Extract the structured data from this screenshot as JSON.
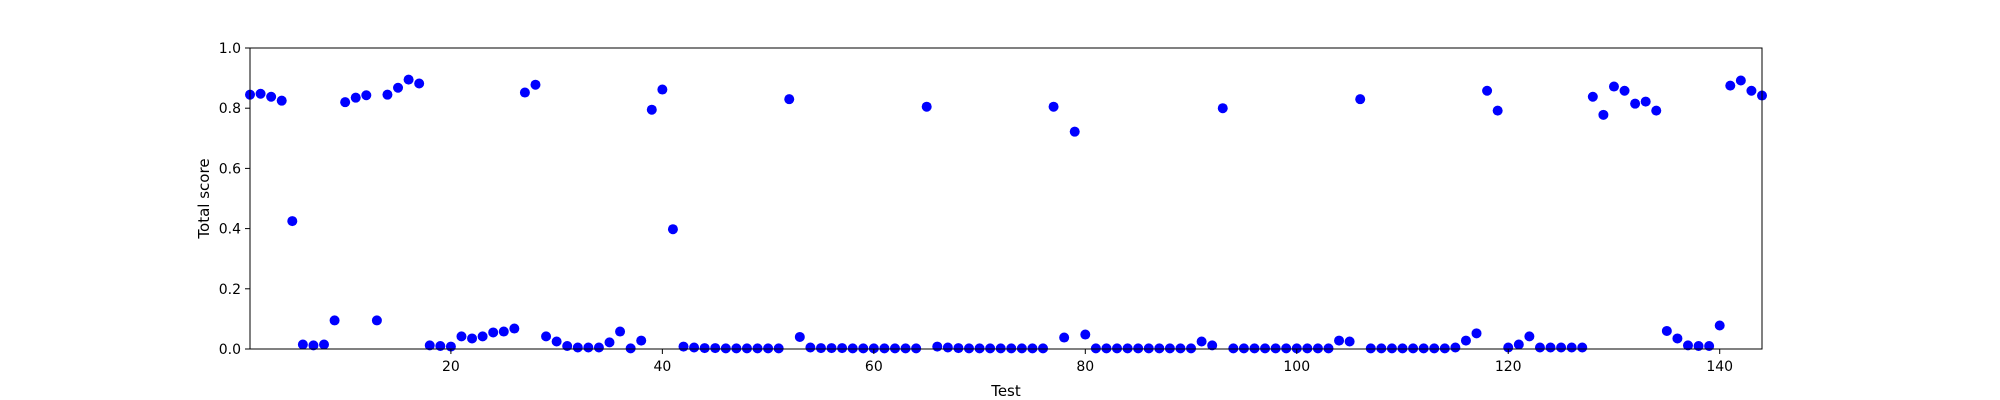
{
  "chart_data": {
    "type": "scatter",
    "title": "",
    "xlabel": "Test",
    "ylabel": "Total score",
    "xlim": [
      1,
      144
    ],
    "ylim": [
      0.0,
      1.0
    ],
    "grid": false,
    "x_ticks": [
      20,
      40,
      60,
      80,
      100,
      120,
      140
    ],
    "y_ticks": [
      "0.0",
      "0.2",
      "0.4",
      "0.6",
      "0.8",
      "1.0"
    ],
    "marker_color": "#0000ff",
    "series": [
      {
        "name": "Total score",
        "x": [
          1,
          2,
          3,
          4,
          5,
          6,
          7,
          8,
          9,
          10,
          11,
          12,
          13,
          14,
          15,
          16,
          17,
          18,
          19,
          20,
          21,
          22,
          23,
          24,
          25,
          26,
          27,
          28,
          29,
          30,
          31,
          32,
          33,
          34,
          35,
          36,
          37,
          38,
          39,
          40,
          41,
          42,
          43,
          44,
          45,
          46,
          47,
          48,
          49,
          50,
          51,
          52,
          53,
          54,
          55,
          56,
          57,
          58,
          59,
          60,
          61,
          62,
          63,
          64,
          65,
          66,
          67,
          68,
          69,
          70,
          71,
          72,
          73,
          74,
          75,
          76,
          77,
          78,
          79,
          80,
          81,
          82,
          83,
          84,
          85,
          86,
          87,
          88,
          89,
          90,
          91,
          92,
          93,
          94,
          95,
          96,
          97,
          98,
          99,
          100,
          101,
          102,
          103,
          104,
          105,
          106,
          107,
          108,
          109,
          110,
          111,
          112,
          113,
          114,
          115,
          116,
          117,
          118,
          119,
          120,
          121,
          122,
          123,
          124,
          125,
          126,
          127,
          128,
          129,
          130,
          131,
          132,
          133,
          134,
          135,
          136,
          137,
          138,
          139,
          140,
          141,
          142,
          143,
          144
        ],
        "values": [
          0.845,
          0.848,
          0.838,
          0.825,
          0.425,
          0.015,
          0.012,
          0.015,
          0.095,
          0.82,
          0.835,
          0.843,
          0.095,
          0.845,
          0.868,
          0.895,
          0.882,
          0.012,
          0.01,
          0.008,
          0.042,
          0.035,
          0.042,
          0.055,
          0.058,
          0.068,
          0.852,
          0.878,
          0.042,
          0.025,
          0.01,
          0.005,
          0.005,
          0.005,
          0.022,
          0.058,
          0.002,
          0.028,
          0.795,
          0.862,
          0.398,
          0.008,
          0.005,
          0.003,
          0.003,
          0.002,
          0.002,
          0.002,
          0.002,
          0.002,
          0.002,
          0.83,
          0.04,
          0.005,
          0.003,
          0.003,
          0.003,
          0.002,
          0.002,
          0.002,
          0.002,
          0.002,
          0.002,
          0.002,
          0.805,
          0.008,
          0.005,
          0.003,
          0.002,
          0.002,
          0.002,
          0.002,
          0.002,
          0.002,
          0.002,
          0.002,
          0.805,
          0.038,
          0.722,
          0.048,
          0.002,
          0.002,
          0.002,
          0.002,
          0.002,
          0.002,
          0.002,
          0.002,
          0.002,
          0.002,
          0.025,
          0.012,
          0.8,
          0.002,
          0.002,
          0.002,
          0.002,
          0.002,
          0.002,
          0.002,
          0.002,
          0.002,
          0.002,
          0.028,
          0.025,
          0.83,
          0.002,
          0.002,
          0.002,
          0.002,
          0.002,
          0.002,
          0.002,
          0.002,
          0.005,
          0.028,
          0.052,
          0.858,
          0.792,
          0.005,
          0.015,
          0.042,
          0.005,
          0.005,
          0.005,
          0.005,
          0.005,
          0.838,
          0.778,
          0.872,
          0.858,
          0.815,
          0.822,
          0.792,
          0.06,
          0.035,
          0.012,
          0.01,
          0.01,
          0.078,
          0.875,
          0.892,
          0.858,
          0.842
        ]
      }
    ]
  }
}
